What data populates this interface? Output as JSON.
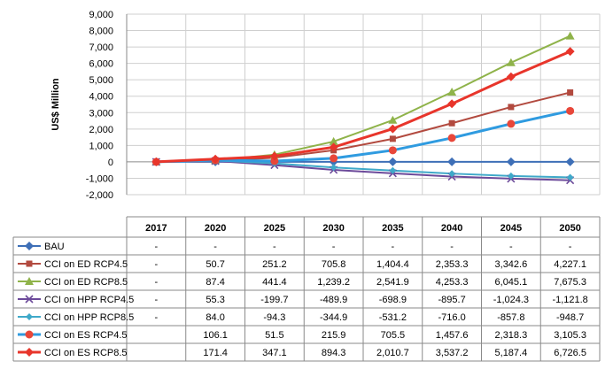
{
  "chart_data": {
    "type": "line",
    "ylabel": "US$ Million",
    "ylim": [
      -2000,
      9000
    ],
    "yticks": [
      "9,000",
      "8,000",
      "7,000",
      "6,000",
      "5,000",
      "4,000",
      "3,000",
      "2,000",
      "1,000",
      "0",
      "-1,000",
      "-2,000"
    ],
    "categories": [
      "2017",
      "2020",
      "2025",
      "2030",
      "2035",
      "2040",
      "2045",
      "2050"
    ],
    "grid": true,
    "legend": "table below chart",
    "series": [
      {
        "name": "BAU",
        "color": "#3e6fb7",
        "marker": "diamond",
        "values": [
          0,
          0,
          0,
          0,
          0,
          0,
          0,
          0
        ],
        "labels": [
          "-",
          "-",
          "-",
          "-",
          "-",
          "-",
          "-",
          "-"
        ]
      },
      {
        "name": "CCI on ED RCP4.5",
        "color": "#b24a3f",
        "marker": "square",
        "values": [
          0,
          50.7,
          251.2,
          705.8,
          1404.4,
          2353.3,
          3342.6,
          4227.1
        ],
        "labels": [
          "-",
          "50.7",
          "251.2",
          "705.8",
          "1,404.4",
          "2,353.3",
          "3,342.6",
          "4,227.1"
        ]
      },
      {
        "name": "CCI on ED RCP8.5",
        "color": "#8fb34a",
        "marker": "triangle",
        "values": [
          0,
          87.4,
          441.4,
          1239.2,
          2541.9,
          4253.3,
          6045.1,
          7675.3
        ],
        "labels": [
          "-",
          "87.4",
          "441.4",
          "1,239.2",
          "2,541.9",
          "4,253.3",
          "6,045.1",
          "7,675.3"
        ]
      },
      {
        "name": "CCI on HPP RCP4.5",
        "color": "#6c4a9a",
        "marker": "x",
        "values": [
          0,
          55.3,
          -199.7,
          -489.9,
          -698.9,
          -895.7,
          -1024.3,
          -1121.8
        ],
        "labels": [
          "-",
          "55.3",
          "-199.7",
          "-489.9",
          "-698.9",
          "-895.7",
          "-1,024.3",
          "-1,121.8"
        ]
      },
      {
        "name": "CCI on HPP RCP8.5",
        "color": "#3fa9c9",
        "marker": "diamond-small",
        "values": [
          0,
          84.0,
          -94.3,
          -344.9,
          -531.2,
          -716.0,
          -857.8,
          -948.7
        ],
        "labels": [
          "-",
          "84.0",
          "-94.3",
          "-344.9",
          "-531.2",
          "-716.0",
          "-857.8",
          "-948.7"
        ]
      },
      {
        "name": "CCI on ES RCP4.5",
        "color": "#2f9be0",
        "marker": "circle",
        "markerColor": "#e8473a",
        "values": [
          0,
          106.1,
          51.5,
          215.9,
          705.5,
          1457.6,
          2318.3,
          3105.3
        ],
        "labels": [
          "",
          "106.1",
          "51.5",
          "215.9",
          "705.5",
          "1,457.6",
          "2,318.3",
          "3,105.3"
        ]
      },
      {
        "name": "CCI on ES RCP8.5",
        "color": "#e8352b",
        "marker": "diamond",
        "values": [
          0,
          171.4,
          347.1,
          894.3,
          2010.7,
          3537.2,
          5187.4,
          6726.5
        ],
        "labels": [
          "",
          "171.4",
          "347.1",
          "894.3",
          "2,010.7",
          "3,537.2",
          "5,187.4",
          "6,726.5"
        ]
      }
    ]
  }
}
